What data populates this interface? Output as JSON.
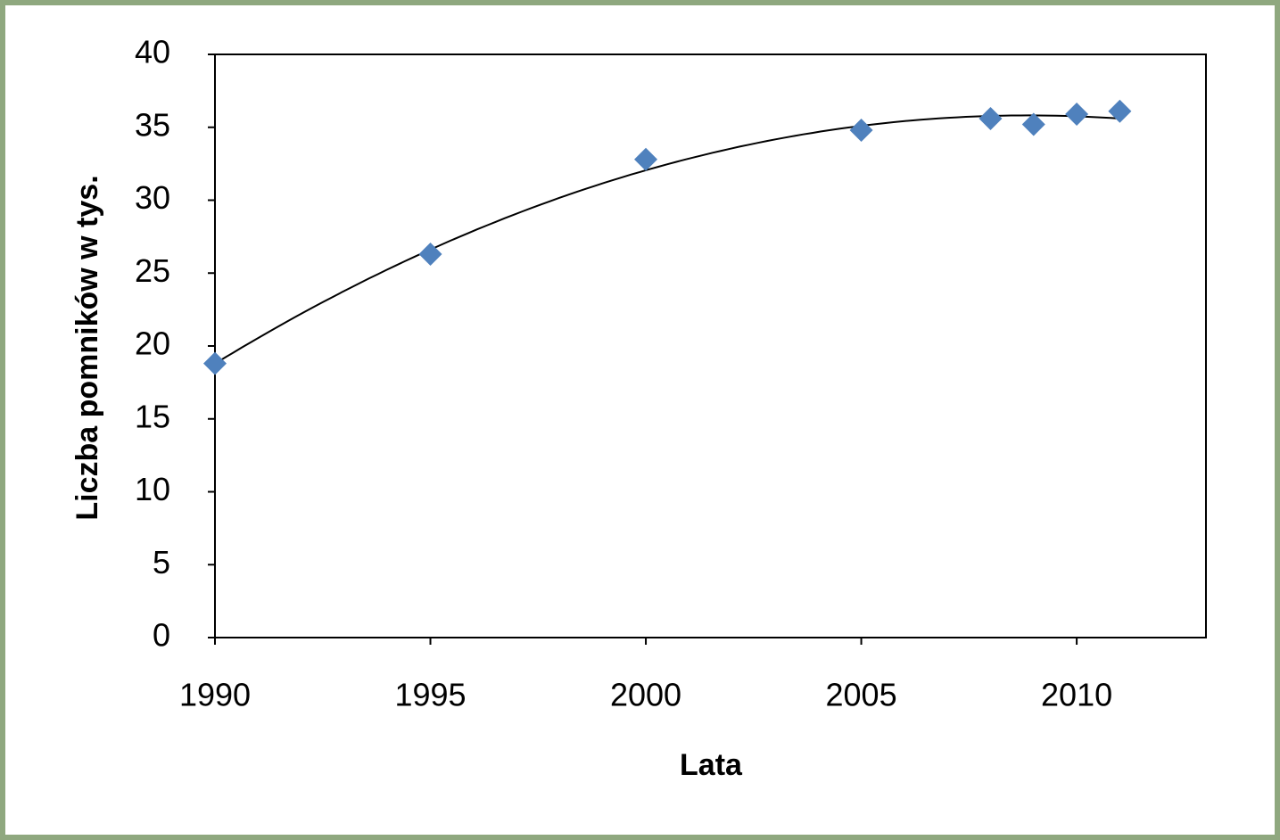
{
  "chart_data": {
    "type": "scatter",
    "x_label": "Lata",
    "y_label": "Liczba pomników w tys.",
    "series": [
      {
        "color": "#4f81bd",
        "x": [
          1990,
          1995,
          2000,
          2005,
          2008,
          2009,
          2010,
          2011
        ],
        "values": [
          18.8,
          26.3,
          32.8,
          34.8,
          35.6,
          35.2,
          35.9,
          36.1
        ]
      }
    ],
    "trendline": "polynomial",
    "xlim": [
      1990,
      2013
    ],
    "xticks": [
      1990,
      1995,
      2000,
      2005,
      2010
    ],
    "ylim": [
      0,
      40
    ],
    "yticks": [
      0,
      5,
      10,
      15,
      20,
      25,
      30,
      35,
      40
    ],
    "grid": false
  }
}
